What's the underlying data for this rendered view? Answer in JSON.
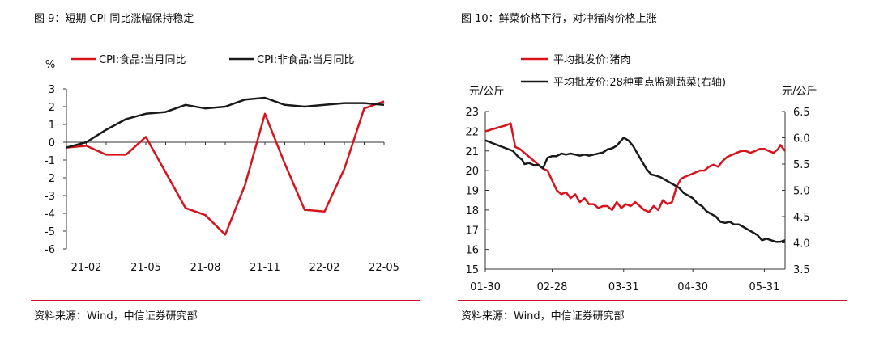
{
  "panels": [
    {
      "title": "图 9：短期 CPI 同比涨幅保持稳定",
      "source": "资料来源：Wind，中信证券研究部"
    },
    {
      "title": "图 10：鲜菜价格下行，对冲猪肉价格上涨",
      "source": "资料来源：Wind，中信证券研究部"
    }
  ],
  "chart_data": [
    {
      "type": "line",
      "ylabel": "%",
      "ylim": [
        -6,
        3
      ],
      "yticks": [
        "3",
        "2",
        "1",
        "0",
        "-1",
        "-2",
        "-3",
        "-4",
        "-5",
        "-6"
      ],
      "x_tick_labels": [
        "21-02",
        "21-05",
        "21-08",
        "21-11",
        "22-02",
        "22-05"
      ],
      "x": [
        "21-01",
        "21-02",
        "21-03",
        "21-04",
        "21-05",
        "21-06",
        "21-07",
        "21-08",
        "21-09",
        "21-10",
        "21-11",
        "21-12",
        "22-01",
        "22-02",
        "22-03",
        "22-04",
        "22-05"
      ],
      "grid": false,
      "legend_position": "top",
      "series": [
        {
          "name": "CPI:食品:当月同比",
          "color": "#d7141e",
          "values": [
            -0.3,
            -0.2,
            -0.7,
            -0.7,
            0.3,
            -1.7,
            -3.7,
            -4.1,
            -5.2,
            -2.4,
            1.6,
            -1.2,
            -3.8,
            -3.9,
            -1.5,
            1.9,
            2.3
          ]
        },
        {
          "name": "CPI:非食品:当月同比",
          "color": "#1a1a1a",
          "values": [
            -0.3,
            0.0,
            0.7,
            1.3,
            1.6,
            1.7,
            2.1,
            1.9,
            2.0,
            2.4,
            2.5,
            2.1,
            2.0,
            2.1,
            2.2,
            2.2,
            2.1
          ]
        }
      ]
    },
    {
      "type": "line",
      "ylabel_left": "元/公斤",
      "ylabel_right": "元/公斤",
      "ylim_left": [
        15,
        23
      ],
      "ylim_right": [
        3.5,
        6.5
      ],
      "yticks_left": [
        "23",
        "22",
        "21",
        "20",
        "19",
        "18",
        "17",
        "16",
        "15"
      ],
      "yticks_right": [
        "6.5",
        "6.0",
        "5.5",
        "5.0",
        "4.5",
        "4.0",
        "3.5"
      ],
      "x_tick_labels": [
        "01-30",
        "02-28",
        "03-31",
        "04-30",
        "05-31"
      ],
      "x_range_days_from_01_30": [
        0,
        130
      ],
      "grid": false,
      "legend_position": "top",
      "series": [
        {
          "name": "平均批发价:猪肉",
          "color": "#d7141e",
          "axis": "left",
          "points": [
            [
              0,
              22.0
            ],
            [
              3,
              22.1
            ],
            [
              6,
              22.2
            ],
            [
              9,
              22.3
            ],
            [
              11,
              22.4
            ],
            [
              12,
              21.8
            ],
            [
              13,
              21.2
            ],
            [
              15,
              21.1
            ],
            [
              17,
              20.9
            ],
            [
              19,
              20.7
            ],
            [
              21,
              20.5
            ],
            [
              23,
              20.3
            ],
            [
              25,
              20.1
            ],
            [
              27,
              20.0
            ],
            [
              29,
              19.5
            ],
            [
              31,
              19.0
            ],
            [
              33,
              18.8
            ],
            [
              35,
              18.9
            ],
            [
              37,
              18.6
            ],
            [
              39,
              18.8
            ],
            [
              41,
              18.4
            ],
            [
              43,
              18.6
            ],
            [
              45,
              18.3
            ],
            [
              47,
              18.3
            ],
            [
              49,
              18.1
            ],
            [
              51,
              18.2
            ],
            [
              53,
              18.2
            ],
            [
              55,
              18.0
            ],
            [
              57,
              18.4
            ],
            [
              59,
              18.1
            ],
            [
              61,
              18.3
            ],
            [
              63,
              18.2
            ],
            [
              65,
              18.4
            ],
            [
              67,
              18.2
            ],
            [
              69,
              18.0
            ],
            [
              71,
              17.9
            ],
            [
              73,
              18.2
            ],
            [
              75,
              18.0
            ],
            [
              77,
              18.5
            ],
            [
              79,
              18.3
            ],
            [
              81,
              18.4
            ],
            [
              83,
              19.2
            ],
            [
              85,
              19.6
            ],
            [
              87,
              19.7
            ],
            [
              89,
              19.8
            ],
            [
              91,
              19.9
            ],
            [
              93,
              20.0
            ],
            [
              95,
              20.0
            ],
            [
              97,
              20.2
            ],
            [
              99,
              20.3
            ],
            [
              101,
              20.2
            ],
            [
              103,
              20.5
            ],
            [
              105,
              20.7
            ],
            [
              107,
              20.8
            ],
            [
              109,
              20.9
            ],
            [
              111,
              21.0
            ],
            [
              113,
              21.0
            ],
            [
              115,
              20.9
            ],
            [
              117,
              21.0
            ],
            [
              119,
              21.1
            ],
            [
              121,
              21.1
            ],
            [
              123,
              21.0
            ],
            [
              125,
              20.9
            ],
            [
              127,
              21.1
            ],
            [
              128,
              21.3
            ],
            [
              130,
              21.0
            ]
          ]
        },
        {
          "name": "平均批发价:28种重点监测蔬菜(右轴)",
          "color": "#1a1a1a",
          "axis": "right",
          "points": [
            [
              0,
              5.95
            ],
            [
              3,
              5.9
            ],
            [
              6,
              5.85
            ],
            [
              9,
              5.8
            ],
            [
              12,
              5.75
            ],
            [
              14,
              5.65
            ],
            [
              16,
              5.58
            ],
            [
              17,
              5.5
            ],
            [
              19,
              5.52
            ],
            [
              21,
              5.48
            ],
            [
              23,
              5.48
            ],
            [
              25,
              5.42
            ],
            [
              27,
              5.62
            ],
            [
              29,
              5.65
            ],
            [
              31,
              5.65
            ],
            [
              33,
              5.7
            ],
            [
              35,
              5.68
            ],
            [
              37,
              5.7
            ],
            [
              39,
              5.68
            ],
            [
              41,
              5.66
            ],
            [
              43,
              5.68
            ],
            [
              45,
              5.66
            ],
            [
              47,
              5.68
            ],
            [
              49,
              5.7
            ],
            [
              51,
              5.72
            ],
            [
              53,
              5.78
            ],
            [
              55,
              5.8
            ],
            [
              57,
              5.85
            ],
            [
              59,
              5.95
            ],
            [
              60,
              6.0
            ],
            [
              62,
              5.95
            ],
            [
              64,
              5.85
            ],
            [
              66,
              5.7
            ],
            [
              68,
              5.55
            ],
            [
              70,
              5.4
            ],
            [
              72,
              5.3
            ],
            [
              74,
              5.28
            ],
            [
              76,
              5.25
            ],
            [
              78,
              5.2
            ],
            [
              80,
              5.15
            ],
            [
              82,
              5.1
            ],
            [
              84,
              5.05
            ],
            [
              86,
              4.95
            ],
            [
              88,
              4.9
            ],
            [
              90,
              4.85
            ],
            [
              92,
              4.75
            ],
            [
              94,
              4.7
            ],
            [
              96,
              4.6
            ],
            [
              98,
              4.55
            ],
            [
              100,
              4.5
            ],
            [
              102,
              4.4
            ],
            [
              104,
              4.38
            ],
            [
              106,
              4.4
            ],
            [
              108,
              4.35
            ],
            [
              110,
              4.35
            ],
            [
              112,
              4.3
            ],
            [
              114,
              4.25
            ],
            [
              116,
              4.2
            ],
            [
              118,
              4.15
            ],
            [
              120,
              4.05
            ],
            [
              122,
              4.08
            ],
            [
              124,
              4.05
            ],
            [
              126,
              4.02
            ],
            [
              128,
              4.02
            ],
            [
              130,
              4.05
            ]
          ]
        }
      ]
    }
  ]
}
